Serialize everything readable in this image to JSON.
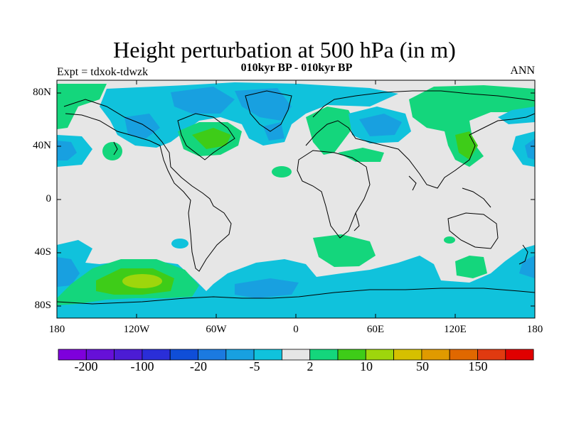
{
  "title": "Height perturbation at 500 hPa (in m)",
  "subtitle": "010kyr BP - 010kyr BP",
  "experiment_label": "Expt = tdxok-tdwzk",
  "season": "ANN",
  "lat_labels": [
    "80N",
    "40N",
    "0",
    "40S",
    "80S"
  ],
  "lon_labels": [
    "180",
    "120W",
    "60W",
    "0",
    "60E",
    "120E",
    "180"
  ],
  "colorbar": {
    "colors": [
      "#7e00dc",
      "#6610d8",
      "#4c1cd4",
      "#2a2ed8",
      "#0f4ed8",
      "#1b7ae0",
      "#18a0e0",
      "#10c2dc",
      "#e6e6e6",
      "#14d67c",
      "#3ecc18",
      "#9ed60c",
      "#d6c000",
      "#e09a00",
      "#e06800",
      "#e03a10",
      "#e00000"
    ],
    "labels": [
      "-200",
      "-100",
      "-20",
      "-5",
      "2",
      "10",
      "50",
      "150"
    ]
  },
  "colors": {
    "neutral": "#e6e6e6",
    "neg_light": "#10c2dc",
    "neg_mid": "#18a0e0",
    "pos_light": "#14d67c",
    "pos_mid": "#3ecc18",
    "pos_strong": "#9ed60c"
  }
}
